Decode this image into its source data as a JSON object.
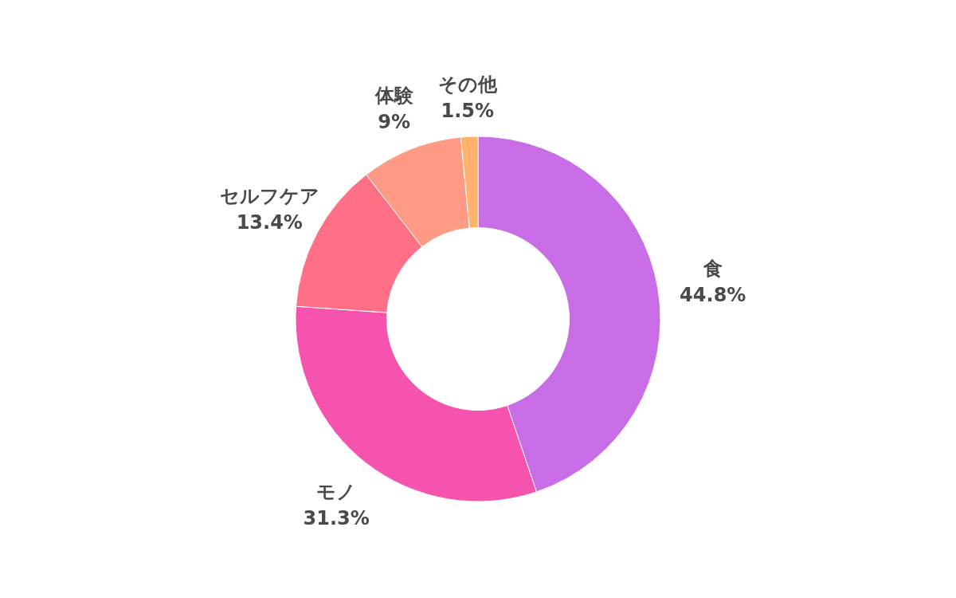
{
  "chart_data": {
    "type": "donut",
    "categories": [
      "食",
      "モノ",
      "セルフケア",
      "体験",
      "その他"
    ],
    "values": [
      44.8,
      31.3,
      13.4,
      9,
      1.5
    ],
    "colors": [
      "#c86de6",
      "#f553ad",
      "#ff7087",
      "#ff9a85",
      "#ffb26b"
    ],
    "value_labels": [
      "44.8%",
      "31.3%",
      "13.4%",
      "9%",
      "1.5%"
    ]
  }
}
